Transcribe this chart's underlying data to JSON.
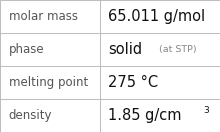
{
  "rows": [
    {
      "label": "molar mass",
      "value_main": "65.011 g/mol",
      "small_text": null,
      "superscript": null
    },
    {
      "label": "phase",
      "value_main": "solid",
      "small_text": " (at STP)",
      "superscript": null
    },
    {
      "label": "melting point",
      "value_main": "275 °C",
      "small_text": null,
      "superscript": null
    },
    {
      "label": "density",
      "value_main": "1.85 g/cm",
      "small_text": null,
      "superscript": "3"
    }
  ],
  "n_rows": 4,
  "col_split": 0.455,
  "background_color": "#ffffff",
  "grid_color": "#bbbbbb",
  "label_color": "#555555",
  "value_color": "#111111",
  "small_color": "#888888",
  "label_fontsize": 8.5,
  "value_fontsize": 10.5,
  "small_fontsize": 6.8,
  "super_fontsize": 6.5,
  "label_font": "DejaVu Sans",
  "value_font": "DejaVu Sans"
}
